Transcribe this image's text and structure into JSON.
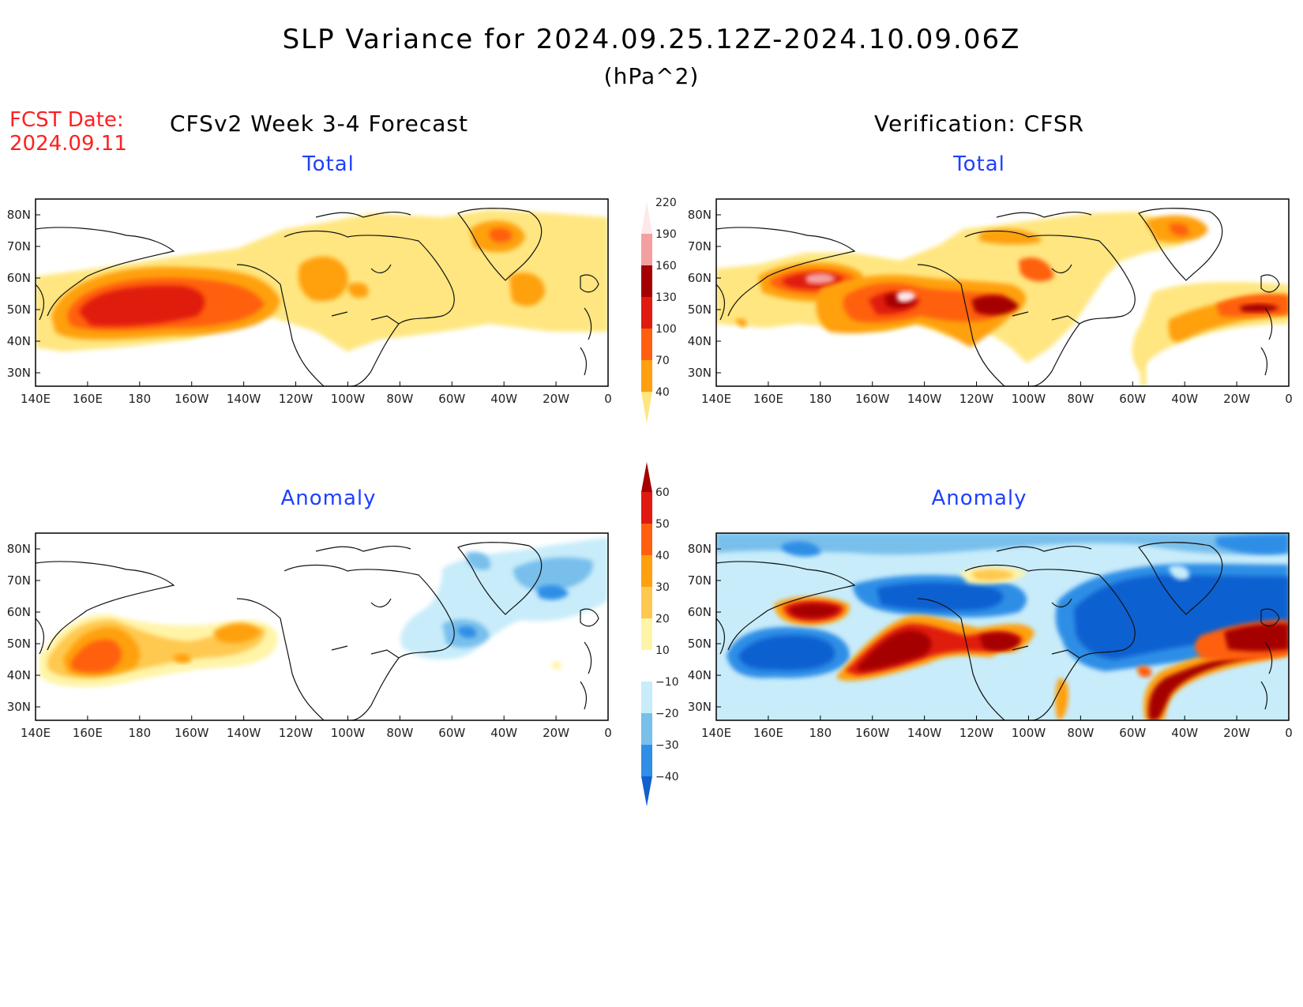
{
  "title": "SLP Variance for 2024.09.25.12Z-2024.10.09.06Z",
  "units": "(hPa^2)",
  "forecast_date": {
    "label": "FCST Date:",
    "value": "2024.09.11"
  },
  "columns": [
    {
      "title": "CFSv2 Week 3-4 Forecast"
    },
    {
      "title": "Verification: CFSR"
    }
  ],
  "panels": [
    {
      "id": "forecast-total",
      "title": "Total"
    },
    {
      "id": "verification-total",
      "title": "Total"
    },
    {
      "id": "forecast-anomaly",
      "title": "Anomaly"
    },
    {
      "id": "verification-anomaly",
      "title": "Anomaly"
    }
  ],
  "axes": {
    "lon_labels": [
      "140E",
      "160E",
      "180",
      "160W",
      "140W",
      "120W",
      "100W",
      "80W",
      "60W",
      "40W",
      "20W",
      "0"
    ],
    "lat_labels": [
      "80N",
      "70N",
      "60N",
      "50N",
      "40N",
      "30N"
    ]
  },
  "colorbars": {
    "total": {
      "levels": [
        40,
        70,
        100,
        130,
        160,
        190,
        220
      ],
      "colors": [
        "#ffe680",
        "#ffa010",
        "#ff6010",
        "#e01a10",
        "#a50000",
        "#f4a0a0",
        "#ffe8e8"
      ]
    },
    "anomaly": {
      "levels": [
        -40,
        -30,
        -20,
        -10,
        10,
        20,
        30,
        40,
        50,
        60
      ],
      "colors": [
        "#1060d0",
        "#2f8ee6",
        "#78bfec",
        "#c8ecfa",
        "#ffffff",
        "#fff4a8",
        "#ffc850",
        "#ffa010",
        "#ff6010",
        "#e01a10",
        "#a50000"
      ]
    }
  }
}
